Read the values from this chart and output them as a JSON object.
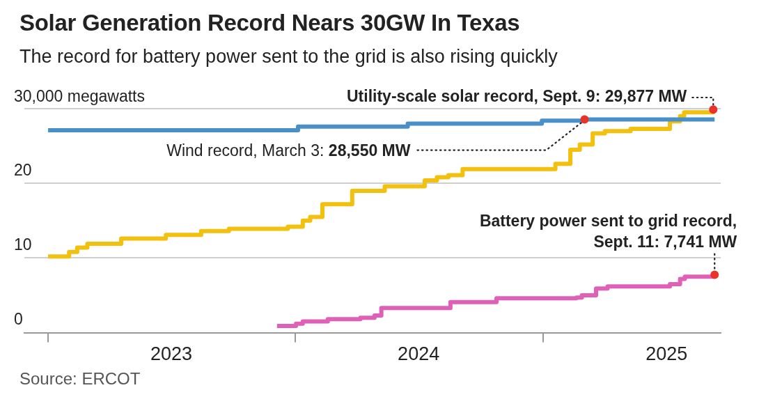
{
  "chart_data": {
    "type": "step",
    "title": "Solar Generation Record Nears 30GW In Texas",
    "subtitle": "The record for battery power sent to the grid is also rising quickly",
    "series": [
      {
        "color": "#4a90c8",
        "x": [
          "2023-01-01",
          "2024-01-05",
          "2024-06-15",
          "2024-12-30",
          "2025-03-03",
          "2025-09-11"
        ],
        "values": [
          27.1,
          27.6,
          28.0,
          28.4,
          28.55,
          28.55
        ]
      },
      {
        "color": "#f2c00e",
        "x": [
          "2023-01-01",
          "2023-02-01",
          "2023-02-13",
          "2023-02-28",
          "2023-04-19",
          "2023-06-24",
          "2023-08-15",
          "2023-09-25",
          "2023-12-21",
          "2024-01-12",
          "2024-01-23",
          "2024-02-10",
          "2024-03-25",
          "2024-05-12",
          "2024-07-10",
          "2024-07-28",
          "2024-08-14",
          "2024-09-04",
          "2025-01-19",
          "2025-02-10",
          "2025-02-24",
          "2025-03-15",
          "2025-04-02",
          "2025-05-10",
          "2025-07-07",
          "2025-07-22",
          "2025-07-28",
          "2025-09-09"
        ],
        "values": [
          10.2,
          10.8,
          11.4,
          11.9,
          12.6,
          13.1,
          13.6,
          13.9,
          14.2,
          15.0,
          15.5,
          17.2,
          19.0,
          19.6,
          20.4,
          20.8,
          21.1,
          21.9,
          22.6,
          24.5,
          25.2,
          26.7,
          27.0,
          27.3,
          28.3,
          29.0,
          29.5,
          29.877
        ]
      },
      {
        "color": "#e060b8",
        "x": [
          "2023-12-05",
          "2024-01-02",
          "2024-01-12",
          "2024-02-18",
          "2024-04-06",
          "2024-04-27",
          "2024-05-07",
          "2024-08-17",
          "2024-10-24",
          "2025-02-19",
          "2025-02-27",
          "2025-03-20",
          "2025-04-06",
          "2025-07-07",
          "2025-07-22",
          "2025-07-29",
          "2025-09-11"
        ],
        "values": [
          0.9,
          1.2,
          1.5,
          1.8,
          2.0,
          2.3,
          3.3,
          4.1,
          4.6,
          4.7,
          5.0,
          5.9,
          6.2,
          6.5,
          7.2,
          7.5,
          7.741
        ]
      }
    ],
    "xlim": [
      "2022-11-27",
      "2025-09-20"
    ],
    "xticks": [
      {
        "value": "2023-01-01",
        "label": null
      },
      {
        "value": "2023-07-02",
        "label": "2023"
      },
      {
        "value": "2024-01-01",
        "label": null
      },
      {
        "value": "2024-07-01",
        "label": "2024"
      },
      {
        "value": "2025-01-01",
        "label": null
      },
      {
        "value": "2025-07-02",
        "label": "2025"
      }
    ],
    "ylim": [
      0,
      30
    ],
    "yticks": [
      0,
      10,
      20,
      {
        "value": 30,
        "label": null
      }
    ],
    "ylabel": "30,000 megawatts",
    "grid": "y",
    "legend": false,
    "marker": "none",
    "line_style": "solid",
    "annotations": [
      {
        "text": "Utility-scale solar record, Sept. 9: 29,877 MW",
        "x": "2025-09-09",
        "y": 29.877
      },
      {
        "text": "Wind record, March 3: 28,550 MW",
        "x": "2025-03-03",
        "y": 28.55
      },
      {
        "text": "Battery power sent to grid record, Sept. 11: 7,741 MW",
        "x": "2025-09-11",
        "y": 7.741
      },
      "Source: ERCOT"
    ]
  }
}
